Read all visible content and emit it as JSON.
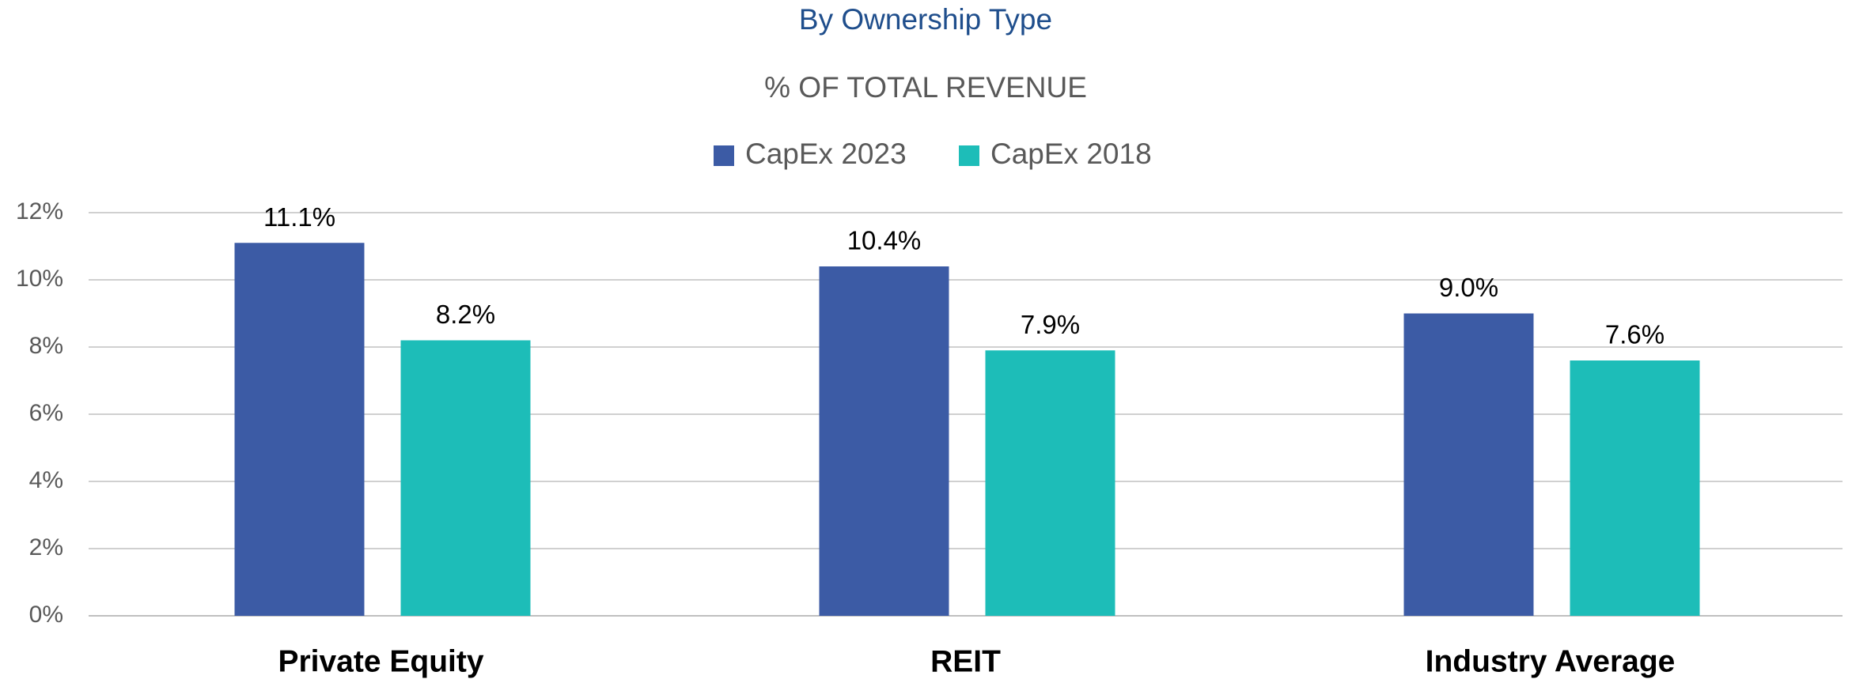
{
  "chart_data": {
    "type": "bar",
    "title": "By Ownership Type",
    "subtitle": "% OF TOTAL REVENUE",
    "categories": [
      "Private Equity",
      "REIT",
      "Industry Average"
    ],
    "series": [
      {
        "name": "CapEx 2023",
        "color": "#3c5ba5",
        "values": [
          11.1,
          10.4,
          9.0
        ],
        "value_labels": [
          "11.1%",
          "10.4%",
          "9.0%"
        ]
      },
      {
        "name": "CapEx 2018",
        "color": "#1dbdb8",
        "values": [
          8.2,
          7.9,
          7.6
        ],
        "value_labels": [
          "8.2%",
          "7.9%",
          "7.6%"
        ]
      }
    ],
    "ylim": [
      0,
      12
    ],
    "yticks": [
      {
        "value": 0,
        "label": "0%"
      },
      {
        "value": 2,
        "label": "2%"
      },
      {
        "value": 4,
        "label": "4%"
      },
      {
        "value": 6,
        "label": "6%"
      },
      {
        "value": 8,
        "label": "8%"
      },
      {
        "value": 10,
        "label": "10%"
      },
      {
        "value": 12,
        "label": "12%"
      }
    ],
    "grid": true,
    "legend": "top"
  }
}
